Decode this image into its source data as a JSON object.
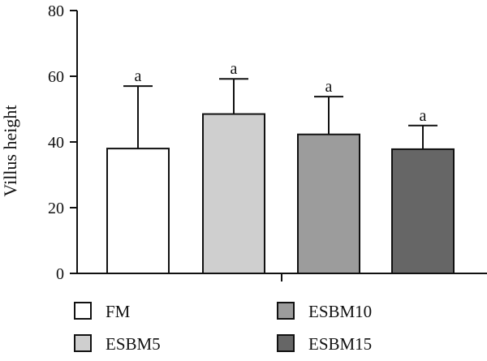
{
  "chart_data": {
    "type": "bar",
    "title": "",
    "xlabel": "",
    "ylabel": "Villus height",
    "ylim": [
      0,
      80
    ],
    "yticks": [
      0,
      20,
      40,
      60,
      80
    ],
    "categories": [
      "FM",
      "ESBM5",
      "ESBM10",
      "ESBM15"
    ],
    "values": [
      38,
      48.5,
      42.3,
      37.8
    ],
    "error_upper": [
      57,
      59.2,
      53.8,
      45
    ],
    "significance_letters": [
      "a",
      "a",
      "a",
      "a"
    ],
    "colors": [
      "#ffffff",
      "#cfcfcf",
      "#9c9c9c",
      "#666666"
    ],
    "legend": {
      "placement": "bottom",
      "entries": [
        "FM",
        "ESBM5",
        "ESBM10",
        "ESBM15"
      ]
    },
    "grid": false
  }
}
